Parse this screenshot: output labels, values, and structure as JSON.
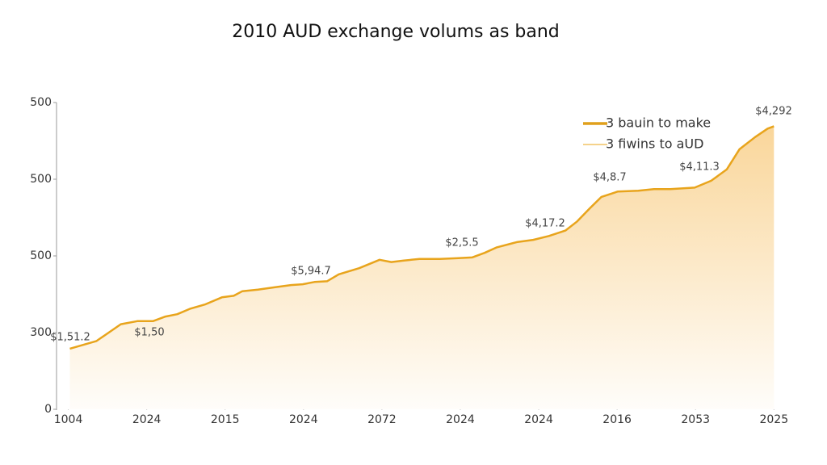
{
  "chart_data": {
    "type": "line",
    "title": "2010 AUD exchange volums as band",
    "x": [
      0.02,
      0.36,
      0.67,
      0.88,
      1.08,
      1.24,
      1.39,
      1.55,
      1.75,
      1.96,
      2.11,
      2.22,
      2.42,
      2.63,
      2.84,
      2.99,
      3.14,
      3.3,
      3.45,
      3.71,
      3.97,
      4.12,
      4.28,
      4.48,
      4.74,
      4.95,
      5.15,
      5.31,
      5.46,
      5.72,
      5.93,
      6.13,
      6.34,
      6.49,
      6.65,
      6.8,
      7.01,
      7.27,
      7.47,
      7.68,
      7.99,
      8.2,
      8.4,
      8.56,
      8.76,
      8.92,
      9.0
    ],
    "series": [
      {
        "name": "3 bauin to make",
        "color": "#e8a41c",
        "fill_area": true,
        "values": [
          79,
          89,
          111,
          115,
          115,
          121,
          124,
          131,
          137,
          146,
          148,
          154,
          156,
          159,
          162,
          163,
          166,
          167,
          176,
          184,
          195,
          192,
          194,
          196,
          196,
          197,
          198,
          204,
          211,
          218,
          221,
          226,
          233,
          245,
          262,
          277,
          284,
          285,
          287,
          287,
          289,
          298,
          313,
          339,
          355,
          366,
          369
        ]
      }
    ],
    "legend": [
      {
        "label": "3 bauin to make",
        "style": "line",
        "color": "#e0a01c"
      },
      {
        "label": "3 fiwins to aUD",
        "style": "area",
        "color": "#f2c465"
      }
    ],
    "area_color": "#f9d495",
    "annotations": [
      "$1,51.2",
      "$1,50",
      "$5,94.7",
      "$2,5.5",
      "$4,17.2",
      "$4,8.7",
      "$4,11.3",
      "$4,292"
    ],
    "xlim": [
      -0.15,
      9.1
    ],
    "xticks": [
      {
        "value": 0,
        "label": "1004"
      },
      {
        "value": 1,
        "label": "2024"
      },
      {
        "value": 2,
        "label": "2015"
      },
      {
        "value": 3,
        "label": "2024"
      },
      {
        "value": 4,
        "label": "2072"
      },
      {
        "value": 5,
        "label": "2024"
      },
      {
        "value": 6,
        "label": "2024"
      },
      {
        "value": 7,
        "label": "2016"
      },
      {
        "value": 8,
        "label": "2053"
      },
      {
        "value": 9,
        "label": "2025"
      }
    ],
    "ylim": [
      0,
      400
    ],
    "yticks": [
      0,
      {
        "value": 100,
        "label": "300"
      },
      {
        "value": 200,
        "label": "500"
      },
      {
        "value": 300,
        "label": "500"
      },
      {
        "value": 400,
        "label": "500"
      }
    ],
    "grid": false
  }
}
